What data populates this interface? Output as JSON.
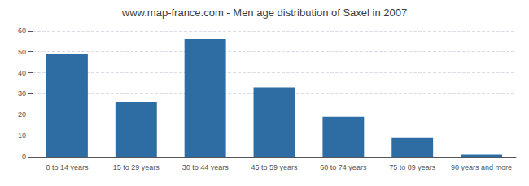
{
  "chart_data": {
    "type": "bar",
    "title": "www.map-france.com - Men age distribution of Saxel in 2007",
    "categories": [
      "0 to 14 years",
      "15 to 29 years",
      "30 to 44 years",
      "45 to 59 years",
      "60 to 74 years",
      "75 to 89 years",
      "90 years and more"
    ],
    "values": [
      49,
      26,
      56,
      33,
      19,
      9,
      1
    ],
    "color": "#2e6da4",
    "ylim": [
      0,
      63
    ],
    "yticks": [
      0,
      10,
      20,
      30,
      40,
      50,
      60
    ],
    "grid": true
  }
}
